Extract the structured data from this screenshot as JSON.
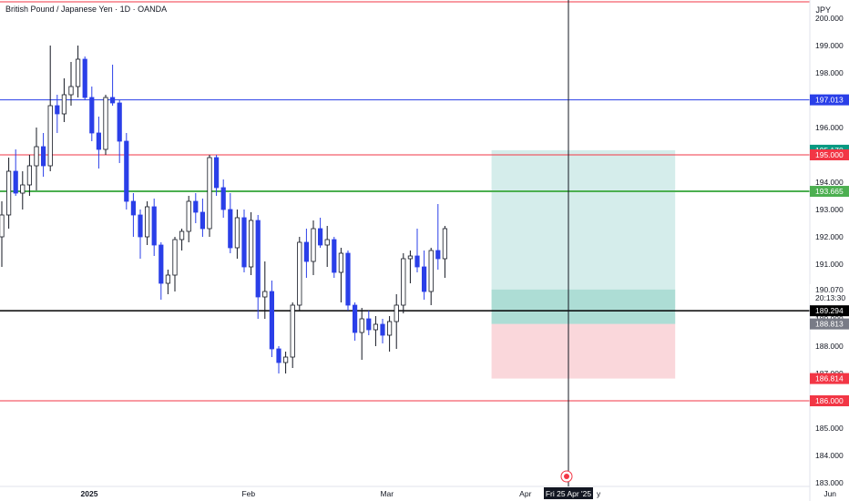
{
  "header": {
    "title": "British Pound / Japanese Yen · 1D · OANDA",
    "currency": "JPY"
  },
  "price_scale": {
    "ticks": [
      "200.000",
      "199.000",
      "198.000",
      "197.000",
      "196.000",
      "195.000",
      "194.000",
      "193.000",
      "192.000",
      "191.000",
      "190.000",
      "189.000",
      "188.000",
      "187.000",
      "186.000",
      "185.000",
      "184.000",
      "183.000"
    ],
    "labels": [
      {
        "text": "197.013",
        "price": 197.013,
        "color": "#2a3fe8",
        "text_color": "#ffffff"
      },
      {
        "text": "195.170",
        "price": 195.17,
        "color": "#089981",
        "text_color": "#ffffff"
      },
      {
        "text": "195.000",
        "price": 195.0,
        "color": "#f23645",
        "text_color": "#ffffff"
      },
      {
        "text": "193.665",
        "price": 193.665,
        "color": "#4caf50",
        "text_color": "#ffffff"
      },
      {
        "text": "190.070",
        "price": 190.07,
        "color": "#ffffff",
        "text_color": "#131722"
      },
      {
        "text": "20:13:30",
        "price": 189.77,
        "color": "#ffffff",
        "text_color": "#131722"
      },
      {
        "text": "189.294",
        "price": 189.294,
        "color": "#000000",
        "text_color": "#ffffff"
      },
      {
        "text": "188.813",
        "price": 188.813,
        "color": "#787b86",
        "text_color": "#ffffff"
      },
      {
        "text": "186.814",
        "price": 186.814,
        "color": "#f23645",
        "text_color": "#ffffff"
      },
      {
        "text": "186.000",
        "price": 186.0,
        "color": "#f23645",
        "text_color": "#ffffff"
      }
    ]
  },
  "time_axis": {
    "labels": [
      {
        "text": "2025",
        "index": 0,
        "bold": true
      },
      {
        "text": "Feb",
        "index": 23
      },
      {
        "text": "Mar",
        "index": 43
      },
      {
        "text": "Apr",
        "index": 63
      },
      {
        "text": "Jun",
        "index": 107
      }
    ],
    "crosshair_label": "Fri 25 Apr '25",
    "partial_label": "y"
  },
  "colors": {
    "bull": "#ffffff",
    "bull_border": "#131722",
    "bear": "#2a3fe8",
    "red_line": "#f23645",
    "blue_line": "#2a3fe8",
    "green_line": "#4caf50",
    "profit_zone": "#b2dfdb",
    "loss_zone": "#f8c9cf"
  },
  "drawings": {
    "horizontal_lines": [
      {
        "price": 200.6,
        "color": "#f23645",
        "width": 1
      },
      {
        "price": 197.013,
        "color": "#2a3fe8",
        "width": 1
      },
      {
        "price": 195.0,
        "color": "#f23645",
        "width": 1
      },
      {
        "price": 193.665,
        "color": "#4caf50",
        "width": 2
      },
      {
        "price": 189.294,
        "color": "#000000",
        "width": 1.5
      },
      {
        "price": 186.0,
        "color": "#f23645",
        "width": 1
      }
    ],
    "position": {
      "entry": 188.813,
      "take_profit": 195.17,
      "stop_loss": 186.814,
      "start_index": 71,
      "end_index": 97
    },
    "crosshair_index": 77
  },
  "chart_data": {
    "type": "candlestick",
    "title": "British Pound / Japanese Yen · 1D · OANDA",
    "ylabel": "JPY",
    "ylim": [
      182.8,
      200.9
    ],
    "grid": false,
    "candles": [
      [
        192.0,
        193.3,
        190.9,
        192.8
      ],
      [
        192.8,
        194.9,
        192.3,
        194.4
      ],
      [
        194.4,
        195.2,
        193.5,
        193.6
      ],
      [
        193.6,
        194.4,
        193.0,
        193.9
      ],
      [
        193.9,
        195.0,
        193.5,
        194.6
      ],
      [
        194.6,
        196.0,
        193.7,
        195.3
      ],
      [
        195.3,
        195.8,
        194.2,
        194.6
      ],
      [
        194.6,
        199.0,
        194.4,
        196.8
      ],
      [
        196.8,
        197.2,
        195.8,
        196.5
      ],
      [
        196.5,
        197.8,
        196.2,
        197.2
      ],
      [
        197.2,
        198.4,
        196.8,
        197.5
      ],
      [
        197.5,
        199.0,
        197.1,
        198.5
      ],
      [
        198.5,
        198.6,
        197.0,
        197.1
      ],
      [
        197.1,
        197.5,
        195.5,
        195.8
      ],
      [
        195.8,
        196.4,
        194.5,
        195.2
      ],
      [
        195.2,
        197.2,
        195.0,
        197.1
      ],
      [
        197.1,
        198.3,
        196.8,
        196.9
      ],
      [
        196.9,
        197.0,
        194.7,
        195.5
      ],
      [
        195.5,
        195.8,
        193.0,
        193.3
      ],
      [
        193.3,
        193.6,
        192.0,
        192.8
      ],
      [
        192.8,
        193.0,
        191.2,
        192.0
      ],
      [
        192.0,
        193.3,
        191.7,
        193.1
      ],
      [
        193.1,
        193.4,
        191.3,
        191.7
      ],
      [
        191.7,
        191.8,
        189.7,
        190.3
      ],
      [
        190.3,
        190.8,
        189.9,
        190.6
      ],
      [
        190.6,
        192.0,
        190.0,
        191.9
      ],
      [
        191.9,
        192.3,
        191.5,
        192.2
      ],
      [
        192.2,
        193.5,
        191.8,
        193.3
      ],
      [
        193.3,
        193.6,
        192.5,
        192.9
      ],
      [
        192.9,
        193.4,
        192.0,
        192.3
      ],
      [
        192.3,
        195.0,
        192.0,
        194.9
      ],
      [
        194.9,
        195.0,
        193.5,
        193.8
      ],
      [
        193.8,
        194.1,
        192.7,
        193.0
      ],
      [
        193.0,
        193.6,
        191.4,
        191.6
      ],
      [
        191.6,
        193.0,
        191.2,
        192.7
      ],
      [
        192.7,
        193.0,
        190.7,
        190.9
      ],
      [
        190.9,
        192.9,
        190.6,
        192.6
      ],
      [
        192.6,
        192.8,
        189.0,
        189.8
      ],
      [
        189.8,
        191.1,
        189.0,
        190.0
      ],
      [
        190.0,
        190.4,
        187.6,
        187.9
      ],
      [
        187.9,
        188.0,
        187.0,
        187.4
      ],
      [
        187.4,
        187.8,
        187.0,
        187.6
      ],
      [
        187.6,
        189.6,
        187.2,
        189.5
      ],
      [
        189.5,
        192.0,
        189.3,
        191.8
      ],
      [
        191.8,
        192.3,
        190.5,
        191.1
      ],
      [
        191.1,
        192.6,
        190.6,
        192.3
      ],
      [
        192.3,
        192.7,
        191.6,
        191.7
      ],
      [
        191.7,
        192.4,
        190.9,
        191.9
      ],
      [
        191.9,
        192.0,
        190.5,
        190.7
      ],
      [
        190.7,
        191.6,
        189.6,
        191.4
      ],
      [
        191.4,
        191.5,
        189.3,
        189.5
      ],
      [
        189.5,
        189.6,
        188.2,
        188.5
      ],
      [
        188.5,
        189.4,
        187.5,
        189.0
      ],
      [
        189.0,
        189.3,
        188.4,
        188.6
      ],
      [
        188.6,
        189.1,
        188.0,
        188.8
      ],
      [
        188.8,
        189.0,
        188.1,
        188.4
      ],
      [
        188.4,
        189.1,
        187.8,
        188.9
      ],
      [
        188.9,
        189.9,
        187.9,
        189.5
      ],
      [
        189.5,
        191.4,
        189.2,
        191.2
      ],
      [
        191.2,
        191.5,
        190.3,
        191.3
      ],
      [
        191.3,
        192.3,
        190.7,
        190.9
      ],
      [
        190.9,
        191.5,
        189.7,
        190.0
      ],
      [
        190.0,
        191.6,
        189.5,
        191.5
      ],
      [
        191.5,
        193.2,
        190.8,
        191.2
      ],
      [
        191.2,
        192.4,
        190.5,
        192.3
      ]
    ]
  }
}
